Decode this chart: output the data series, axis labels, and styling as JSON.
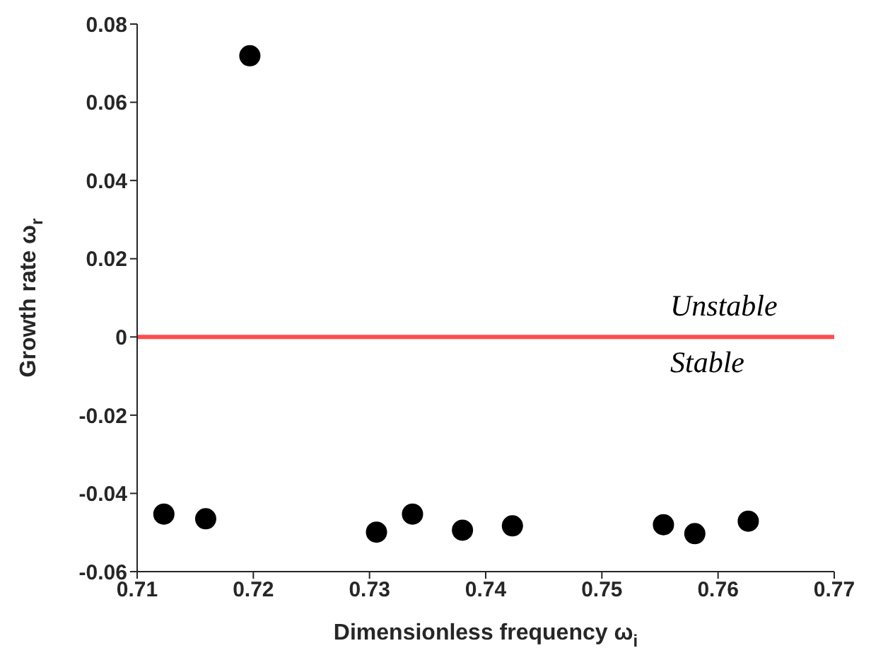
{
  "chart_data": {
    "type": "scatter",
    "xlabel": "Dimensionless frequency ω$_{i}$",
    "ylabel": "Growth rate ω$_{r}$",
    "x": [
      0.7123,
      0.7159,
      0.7197,
      0.7306,
      0.7337,
      0.738,
      0.7423,
      0.7553,
      0.758,
      0.7626
    ],
    "series": [
      {
        "color": "#000000",
        "values": [
          -0.0453,
          -0.0465,
          0.0719,
          -0.0499,
          -0.0453,
          -0.0494,
          -0.0483,
          -0.048,
          -0.0503,
          -0.0471
        ]
      }
    ],
    "marker": "circle",
    "grid": false,
    "legend": false,
    "xlim": [
      0.71,
      0.77
    ],
    "xticks": [
      0.71,
      0.72,
      0.73,
      0.74,
      0.75,
      0.76,
      0.77
    ],
    "ylim": [
      -0.06,
      0.08
    ],
    "yticks": [
      -0.06,
      -0.04,
      -0.02,
      0,
      0.02,
      0.04,
      0.06,
      0.08
    ],
    "ref_lines": [
      {
        "axis": "y",
        "value": 0,
        "color": "#ff4d4d",
        "line_style": "solid"
      }
    ],
    "annotations": [
      "Unstable",
      "Stable"
    ]
  }
}
